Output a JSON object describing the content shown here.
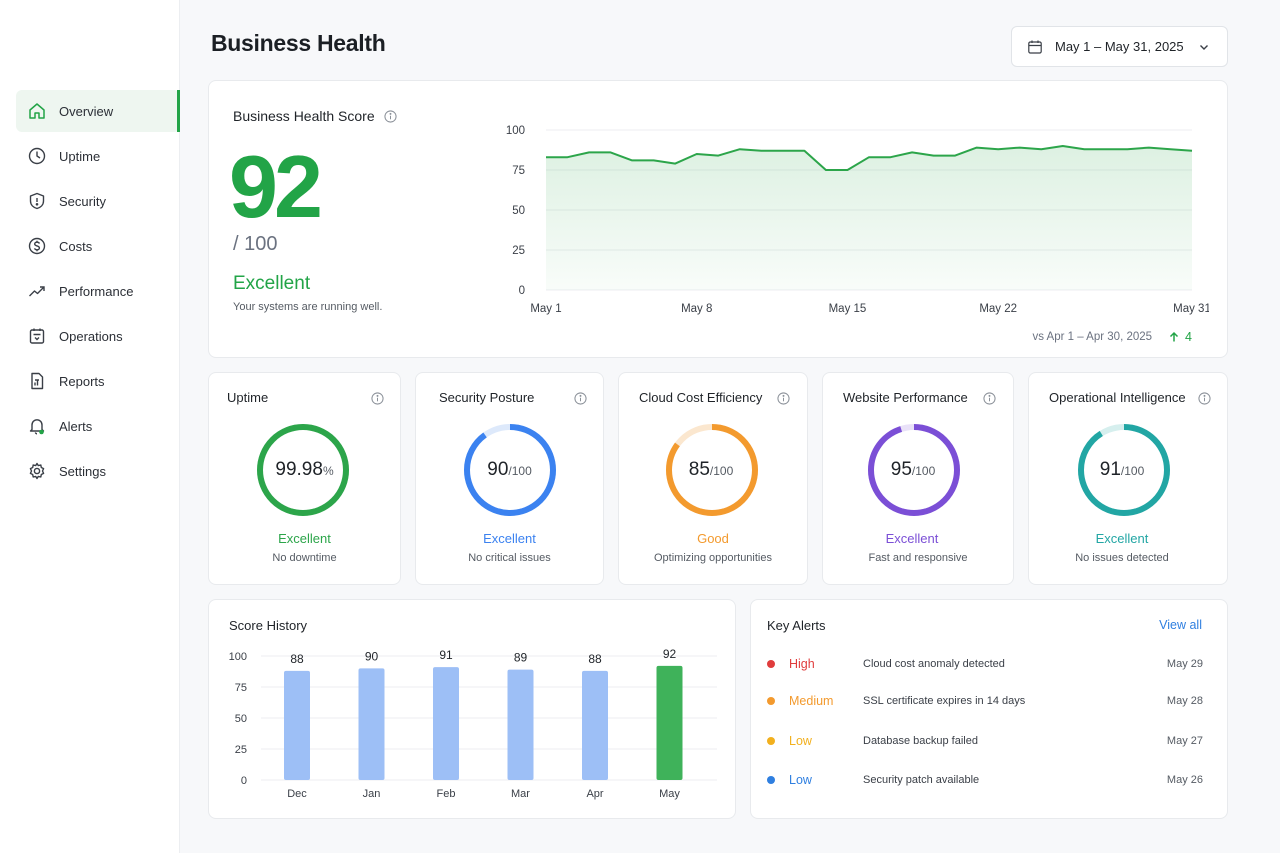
{
  "header": {
    "title": "Business Health",
    "date_range": "May 1 – May 31, 2025"
  },
  "sidebar": {
    "items": [
      {
        "label": "Overview",
        "icon": "home-icon",
        "active": true
      },
      {
        "label": "Uptime",
        "icon": "clock-icon"
      },
      {
        "label": "Security",
        "icon": "shield-icon"
      },
      {
        "label": "Costs",
        "icon": "dollar-icon"
      },
      {
        "label": "Performance",
        "icon": "trend-icon"
      },
      {
        "label": "Operations",
        "icon": "operations-icon"
      },
      {
        "label": "Reports",
        "icon": "report-icon"
      },
      {
        "label": "Alerts",
        "icon": "bell-icon"
      },
      {
        "label": "Settings",
        "icon": "gear-icon"
      }
    ]
  },
  "health": {
    "title": "Business Health Score",
    "score": "92",
    "max": "/ 100",
    "status": "Excellent",
    "description": "Your systems are running well.",
    "compare_label": "vs Apr 1 – Apr 30, 2025",
    "delta": "4"
  },
  "metrics": [
    {
      "title": "Uptime",
      "value": "99.98",
      "unit": "%",
      "fraction": 1.0,
      "status": "Excellent",
      "description": "No downtime",
      "color": "#2ca54a",
      "track": "#d5efdb"
    },
    {
      "title": "Security Posture",
      "value": "90",
      "unit": "/100",
      "fraction": 0.9,
      "status": "Excellent",
      "description": "No critical issues",
      "color": "#3b82f0",
      "track": "#dde9fb"
    },
    {
      "title": "Cloud Cost Efficiency",
      "value": "85",
      "unit": "/100",
      "fraction": 0.85,
      "status": "Good",
      "description": "Optimizing opportunities",
      "color": "#f39a2e",
      "track": "#fbe7cf"
    },
    {
      "title": "Website Performance",
      "value": "95",
      "unit": "/100",
      "fraction": 0.95,
      "status": "Excellent",
      "description": "Fast and responsive",
      "color": "#7b4fd6",
      "track": "#e9e1f8"
    },
    {
      "title": "Operational Intelligence",
      "value": "91",
      "unit": "/100",
      "fraction": 0.91,
      "status": "Excellent",
      "description": "No issues detected",
      "color": "#22a6a4",
      "track": "#d6efee"
    }
  ],
  "alerts": {
    "title": "Key Alerts",
    "view_all": "View all",
    "items": [
      {
        "level": "High",
        "message": "Cloud cost anomaly detected",
        "date": "May 29",
        "color": "#e03c3c"
      },
      {
        "level": "Medium",
        "message": "SSL certificate expires in 14 days",
        "date": "May 28",
        "color": "#f39a2e"
      },
      {
        "level": "Low",
        "message": "Database backup failed",
        "date": "May 27",
        "color": "#f2b01e"
      },
      {
        "level": "Low",
        "message": "Security patch available",
        "date": "May 26",
        "color": "#2f7fe0"
      }
    ]
  },
  "chart_data": [
    {
      "type": "area",
      "title": "Business Health Score",
      "x_ticks": [
        "May 1",
        "May 8",
        "May 15",
        "May 22",
        "May 31"
      ],
      "y_ticks": [
        0,
        25,
        50,
        75,
        100
      ],
      "ylim": [
        0,
        100
      ],
      "x": [
        "May 1",
        "May 2",
        "May 3",
        "May 4",
        "May 5",
        "May 6",
        "May 7",
        "May 8",
        "May 9",
        "May 10",
        "May 11",
        "May 12",
        "May 13",
        "May 14",
        "May 15",
        "May 16",
        "May 17",
        "May 18",
        "May 19",
        "May 20",
        "May 21",
        "May 22",
        "May 23",
        "May 24",
        "May 25",
        "May 26",
        "May 27",
        "May 28",
        "May 29",
        "May 30",
        "May 31"
      ],
      "values": [
        83,
        83,
        86,
        86,
        81,
        81,
        79,
        85,
        84,
        88,
        87,
        87,
        87,
        75,
        75,
        83,
        83,
        86,
        84,
        84,
        89,
        88,
        89,
        88,
        90,
        88,
        88,
        88,
        89,
        88,
        87
      ],
      "color": "#2ca54a",
      "grid": true
    },
    {
      "type": "bar",
      "title": "Score History",
      "categories": [
        "Dec",
        "Jan",
        "Feb",
        "Mar",
        "Apr",
        "May"
      ],
      "values": [
        88,
        90,
        91,
        89,
        88,
        92
      ],
      "y_ticks": [
        0,
        25,
        50,
        75,
        100
      ],
      "ylim": [
        0,
        100
      ],
      "colors": [
        "#9dbff6",
        "#9dbff6",
        "#9dbff6",
        "#9dbff6",
        "#9dbff6",
        "#3fb25a"
      ],
      "grid": true
    }
  ]
}
